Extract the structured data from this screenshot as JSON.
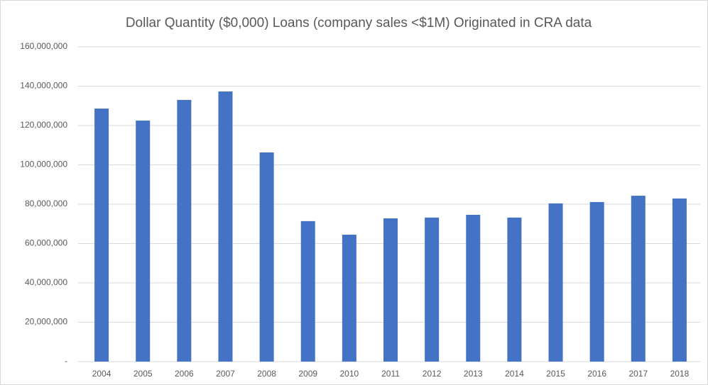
{
  "chart_data": {
    "type": "bar",
    "title": "Dollar Quantity ($0,000) Loans (company sales <$1M) Originated in CRA data",
    "categories": [
      "2004",
      "2005",
      "2006",
      "2007",
      "2008",
      "2009",
      "2010",
      "2011",
      "2012",
      "2013",
      "2014",
      "2015",
      "2016",
      "2017",
      "2018"
    ],
    "values": [
      128600000,
      122500000,
      133000000,
      137300000,
      106300000,
      71400000,
      64500000,
      72800000,
      73200000,
      74600000,
      73200000,
      80400000,
      81100000,
      84300000,
      82900000
    ],
    "color": "#4472c4",
    "ylim": [
      0,
      160000000
    ],
    "yticks": [
      {
        "value": 0,
        "label": "-"
      },
      {
        "value": 20000000,
        "label": "20,000,000"
      },
      {
        "value": 40000000,
        "label": "40,000,000"
      },
      {
        "value": 60000000,
        "label": "60,000,000"
      },
      {
        "value": 80000000,
        "label": "80,000,000"
      },
      {
        "value": 100000000,
        "label": "100,000,000"
      },
      {
        "value": 120000000,
        "label": "120,000,000"
      },
      {
        "value": 140000000,
        "label": "140,000,000"
      },
      {
        "value": 160000000,
        "label": "160,000,000"
      }
    ],
    "grid": true
  }
}
